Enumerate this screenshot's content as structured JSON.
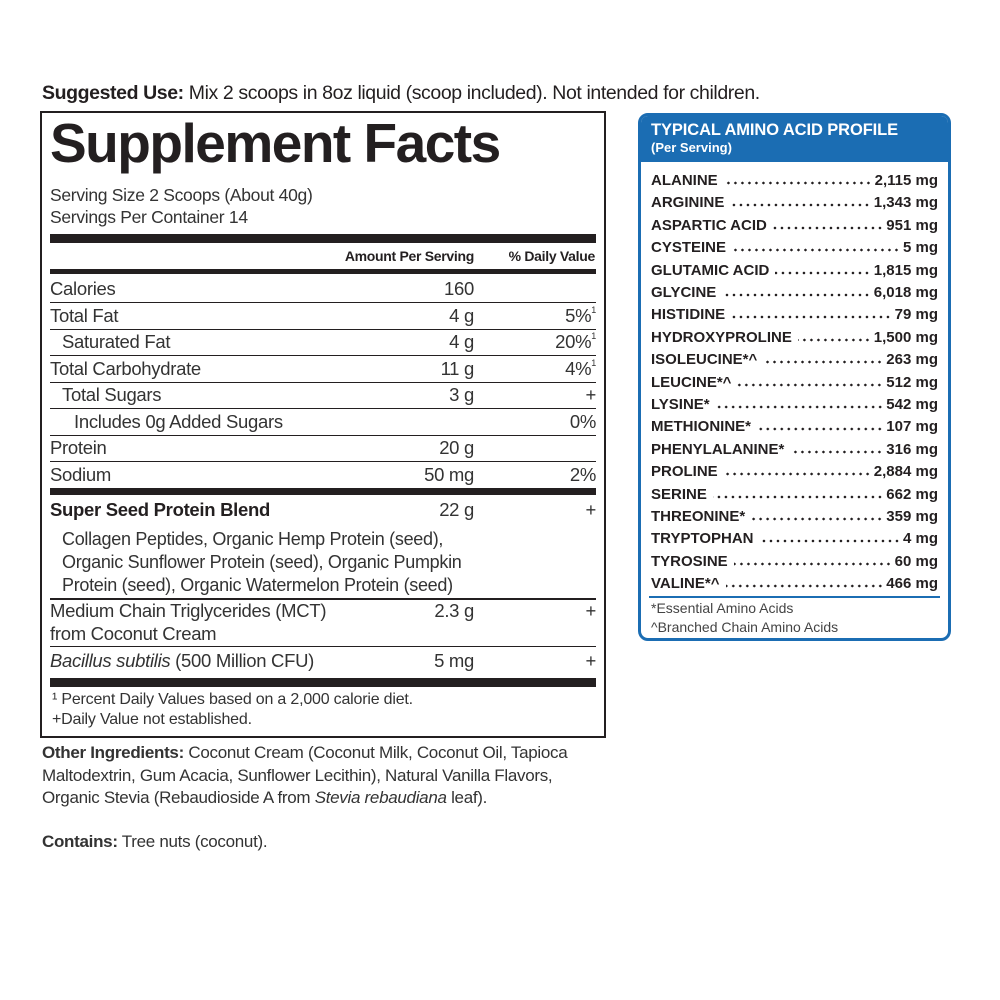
{
  "suggested_use": {
    "label": "Suggested Use:",
    "text": " Mix 2 scoops in 8oz liquid (scoop included). Not intended for children."
  },
  "supplement_facts": {
    "title": "Supplement Facts",
    "serving_size": "Serving Size 2 Scoops (About 40g)",
    "servings_per_container": "Servings Per Container 14",
    "col_amount": "Amount Per Serving",
    "col_dv": "% Daily Value",
    "rows": [
      {
        "name": "Calories",
        "amount": "160",
        "dv": "",
        "sup": ""
      },
      {
        "name": "Total Fat",
        "amount": "4 g",
        "dv": "5%",
        "sup": "1"
      },
      {
        "name": "Saturated Fat",
        "amount": "4 g",
        "dv": "20%",
        "sup": "1"
      },
      {
        "name": "Total Carbohydrate",
        "amount": "11 g",
        "dv": "4%",
        "sup": "1"
      },
      {
        "name": "Total Sugars",
        "amount": "3 g",
        "dv": "+",
        "sup": ""
      },
      {
        "name": "Includes 0g Added Sugars",
        "amount": "",
        "dv": "0%",
        "sup": ""
      },
      {
        "name": "Protein",
        "amount": "20 g",
        "dv": "",
        "sup": ""
      },
      {
        "name": "Sodium",
        "amount": "50 mg",
        "dv": "2%",
        "sup": ""
      }
    ],
    "blend": {
      "name": "Super Seed Protein Blend",
      "amount": "22 g",
      "dv": "+",
      "lines": [
        "Collagen Peptides, Organic Hemp Protein (seed),",
        "Organic Sunflower Protein (seed), Organic Pumpkin",
        "Protein (seed), Organic Watermelon Protein (seed)"
      ]
    },
    "mct": {
      "line1": "Medium Chain Triglycerides (MCT)",
      "line2": "from Coconut Cream",
      "amount": "2.3 g",
      "dv": "+"
    },
    "bacillus": {
      "name_italic": "Bacillus subtilis",
      "name_rest": " (500 Million CFU)",
      "amount": "5 mg",
      "dv": "+"
    },
    "footnotes": [
      "¹ Percent Daily Values based on a 2,000 calorie diet.",
      "+Daily Value not established."
    ]
  },
  "other_ingredients": {
    "label": "Other Ingredients:",
    "text": " Coconut Cream (Coconut Milk, Coconut Oil, Tapioca Maltodextrin, Gum Acacia, Sunflower Lecithin), Natural Vanilla Flavors, Organic Stevia (Rebaudioside A from ",
    "italic": "Stevia rebaudiana",
    "end": " leaf)."
  },
  "contains": {
    "label": "Contains:",
    "text": " Tree nuts (coconut)."
  },
  "amino_profile": {
    "title": "TYPICAL AMINO ACID PROFILE",
    "subtitle": "(Per Serving)",
    "accent_color": "#1b6db3",
    "items": [
      {
        "name": "ALANINE",
        "value": "2,115 mg"
      },
      {
        "name": "ARGININE",
        "value": "1,343 mg"
      },
      {
        "name": "ASPARTIC ACID",
        "value": "951 mg"
      },
      {
        "name": "CYSTEINE",
        "value": "5 mg"
      },
      {
        "name": "GLUTAMIC ACID",
        "value": "1,815 mg"
      },
      {
        "name": "GLYCINE",
        "value": "6,018 mg"
      },
      {
        "name": "HISTIDINE",
        "value": "79 mg"
      },
      {
        "name": "HYDROXYPROLINE",
        "value": "1,500 mg"
      },
      {
        "name": "ISOLEUCINE*^",
        "value": "263 mg"
      },
      {
        "name": "LEUCINE*^",
        "value": "512 mg"
      },
      {
        "name": "LYSINE*",
        "value": "542 mg"
      },
      {
        "name": "METHIONINE*",
        "value": "107 mg"
      },
      {
        "name": "PHENYLALANINE*",
        "value": "316 mg"
      },
      {
        "name": "PROLINE",
        "value": "2,884 mg"
      },
      {
        "name": "SERINE",
        "value": "662 mg"
      },
      {
        "name": "THREONINE*",
        "value": "359 mg"
      },
      {
        "name": "TRYPTOPHAN",
        "value": "4 mg"
      },
      {
        "name": "TYROSINE",
        "value": "60 mg"
      },
      {
        "name": "VALINE*^",
        "value": "466 mg"
      }
    ],
    "footnotes": [
      "*Essential Amino Acids",
      "^Branched Chain Amino Acids"
    ]
  }
}
